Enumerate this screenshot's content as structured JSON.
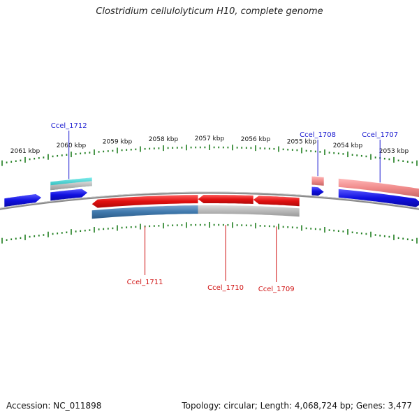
{
  "title": "Clostridium cellulolyticum H10, complete genome",
  "footer": {
    "accession": "Accession: NC_011898",
    "topology": "Topology: circular; Length: 4,068,724 bp; Genes: 3,477"
  },
  "colors": {
    "background": "#ffffff",
    "backbone": "#8a8a8a",
    "tick": "#1e7d1e",
    "forward_gene": "#1010e0",
    "forward_label": "#1a1ad0",
    "reverse_gene": "#e01010",
    "reverse_label": "#d01010",
    "forward_expression": "#40c8c8",
    "reverse_expression_high": "#3f78ac",
    "expression_low": "#b8b8b8",
    "expression_pink": "#f08a8a"
  },
  "ruler": {
    "unit": "kbp",
    "labels": [
      "2061 kbp",
      "2060 kbp",
      "2059 kbp",
      "2058 kbp",
      "2057 kbp",
      "2056 kbp",
      "2055 kbp",
      "2054 kbp",
      "2053 kbp"
    ]
  },
  "genes": [
    {
      "name": "",
      "strand": "forward",
      "start_kbp": 2061.45,
      "end_kbp": 2060.65
    },
    {
      "name": "Ccel_1712",
      "strand": "forward",
      "start_kbp": 2060.45,
      "end_kbp": 2059.65
    },
    {
      "name": "Ccel_1711",
      "strand": "reverse",
      "start_kbp": 2059.55,
      "end_kbp": 2057.25
    },
    {
      "name": "Ccel_1710",
      "strand": "reverse",
      "start_kbp": 2057.25,
      "end_kbp": 2056.05
    },
    {
      "name": "Ccel_1709",
      "strand": "reverse",
      "start_kbp": 2056.05,
      "end_kbp": 2055.05
    },
    {
      "name": "Ccel_1708",
      "strand": "forward",
      "start_kbp": 2054.78,
      "end_kbp": 2054.52
    },
    {
      "name": "Ccel_1707",
      "strand": "forward",
      "start_kbp": 2054.2,
      "end_kbp": 2052.4
    }
  ],
  "expression_tracks": [
    {
      "strand": "forward",
      "start_kbp": 2060.45,
      "end_kbp": 2059.55,
      "color": "#40c8c8"
    },
    {
      "strand": "forward",
      "start_kbp": 2054.78,
      "end_kbp": 2054.52,
      "color": "#f08a8a"
    },
    {
      "strand": "forward",
      "start_kbp": 2054.2,
      "end_kbp": 2052.4,
      "color": "#f08a8a"
    },
    {
      "strand": "reverse",
      "start_kbp": 2059.55,
      "end_kbp": 2057.25,
      "color": "#3f78ac"
    },
    {
      "strand": "reverse",
      "start_kbp": 2057.25,
      "end_kbp": 2055.05,
      "color": "#b8b8b8"
    }
  ]
}
